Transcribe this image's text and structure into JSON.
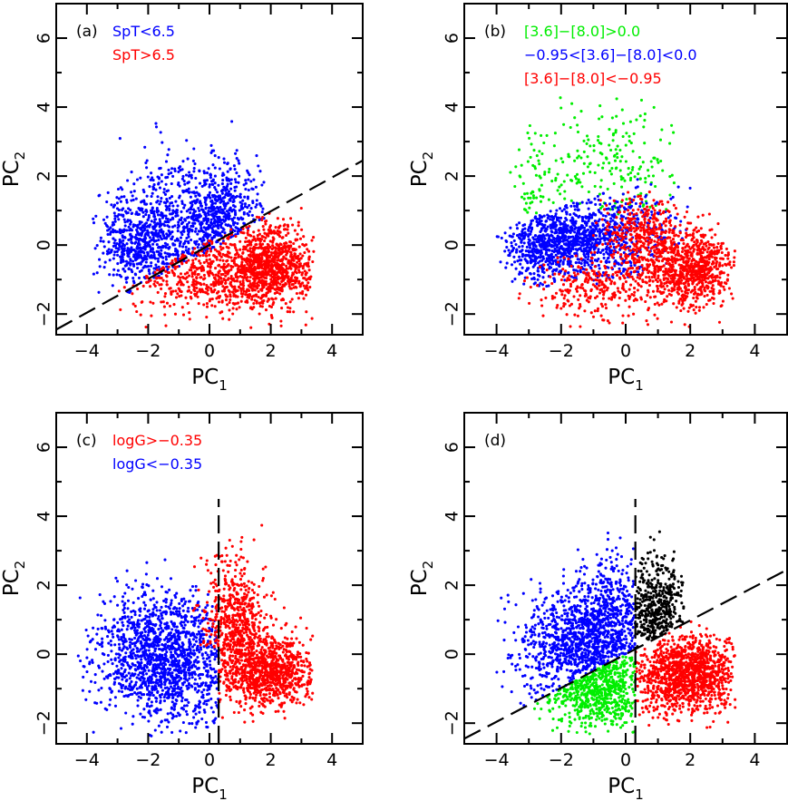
{
  "chart_data": [
    {
      "type": "scatter",
      "panel": "(a)",
      "xlabel": "PC",
      "xlabel_sub": "1",
      "ylabel": "PC",
      "ylabel_sub": "2",
      "xlim": [
        -5,
        5
      ],
      "ylim": [
        -2.6,
        7
      ],
      "xticks": [
        -4,
        -2,
        0,
        2,
        4
      ],
      "xtick_labels": [
        "−4",
        "−2",
        "0",
        "2",
        "4"
      ],
      "yticks": [
        -2,
        0,
        2,
        4,
        6
      ],
      "ytick_labels": [
        "−2",
        "0",
        "2",
        "4",
        "6"
      ],
      "legend": [
        {
          "label": "SpT<6.5",
          "color": "#0000ff"
        },
        {
          "label": "SpT>6.5",
          "color": "#ff0000"
        }
      ],
      "lines": [
        {
          "x": [
            -5,
            5
          ],
          "y": [
            -2.45,
            2.45
          ]
        }
      ],
      "series": [
        {
          "name": "SpT<6.5",
          "color": "#0000ff",
          "n": 1400,
          "seed": 11,
          "clusters": [
            {
              "w": 0.5,
              "cx": -0.6,
              "cy": 0.6,
              "sx": 1.25,
              "sy": 1.0
            },
            {
              "w": 0.3,
              "cx": -2.3,
              "cy": 0.0,
              "sx": 0.7,
              "sy": 0.6
            },
            {
              "w": 0.2,
              "cx": 0.5,
              "cy": 1.0,
              "sx": 0.7,
              "sy": 0.7
            }
          ],
          "rule": "above_line",
          "bounds": [
            -3.8,
            1.8,
            -1.5,
            4.7
          ]
        },
        {
          "name": "SpT>6.5",
          "color": "#ff0000",
          "n": 1450,
          "seed": 23,
          "clusters": [
            {
              "w": 0.55,
              "cx": 2.0,
              "cy": -0.6,
              "sx": 0.75,
              "sy": 0.55
            },
            {
              "w": 0.45,
              "cx": 0.0,
              "cy": -0.9,
              "sx": 1.4,
              "sy": 0.6
            }
          ],
          "rule": "below_line",
          "bounds": [
            -3.2,
            3.4,
            -2.4,
            1.3
          ]
        }
      ]
    },
    {
      "type": "scatter",
      "panel": "(b)",
      "xlabel": "PC",
      "xlabel_sub": "1",
      "ylabel": "PC",
      "ylabel_sub": "2",
      "xlim": [
        -5,
        5
      ],
      "ylim": [
        -2.6,
        7
      ],
      "xticks": [
        -4,
        -2,
        0,
        2,
        4
      ],
      "xtick_labels": [
        "−4",
        "−2",
        "0",
        "2",
        "4"
      ],
      "yticks": [
        -2,
        0,
        2,
        4,
        6
      ],
      "ytick_labels": [
        "−2",
        "0",
        "2",
        "4",
        "6"
      ],
      "legend": [
        {
          "label": "[3.6]−[8.0]>0.0",
          "color": "#00ee00"
        },
        {
          "label": "−0.95<[3.6]−[8.0]<0.0",
          "color": "#0000ff"
        },
        {
          "label": "[3.6]−[8.0]<−0.95",
          "color": "#ff0000"
        }
      ],
      "lines": [],
      "series": [
        {
          "name": "[3.6]−[8.0]>0.0",
          "color": "#00ee00",
          "n": 260,
          "seed": 31,
          "clusters": [
            {
              "w": 0.7,
              "cx": -0.2,
              "cy": 2.3,
              "sx": 1.2,
              "sy": 0.9
            },
            {
              "w": 0.3,
              "cx": -2.8,
              "cy": 1.5,
              "sx": 0.5,
              "sy": 0.8
            }
          ],
          "rule": "y_above",
          "y0": 0.9,
          "bounds": [
            -3.6,
            1.5,
            0.9,
            4.4
          ]
        },
        {
          "name": "−0.95<[3.6]−[8.0]<0.0",
          "color": "#0000ff",
          "n": 1300,
          "seed": 37,
          "clusters": [
            {
              "w": 0.6,
              "cx": -1.0,
              "cy": 0.3,
              "sx": 1.2,
              "sy": 0.6
            },
            {
              "w": 0.4,
              "cx": -2.3,
              "cy": -0.1,
              "sx": 0.7,
              "sy": 0.5
            }
          ],
          "rule": "band",
          "bounds": [
            -4.0,
            2.0,
            -1.2,
            2.1
          ]
        },
        {
          "name": "[3.6]−[8.0]<−0.95",
          "color": "#ff0000",
          "n": 1500,
          "seed": 41,
          "clusters": [
            {
              "w": 0.55,
              "cx": 2.0,
              "cy": -0.7,
              "sx": 0.7,
              "sy": 0.55
            },
            {
              "w": 0.25,
              "cx": 0.5,
              "cy": 0.3,
              "sx": 0.6,
              "sy": 0.6
            },
            {
              "w": 0.2,
              "cx": -1.0,
              "cy": -1.2,
              "sx": 1.1,
              "sy": 0.5
            }
          ],
          "rule": "none",
          "bounds": [
            -3.5,
            3.4,
            -2.4,
            1.6
          ]
        }
      ]
    },
    {
      "type": "scatter",
      "panel": "(c)",
      "xlabel": "PC",
      "xlabel_sub": "1",
      "ylabel": "PC",
      "ylabel_sub": "2",
      "xlim": [
        -5,
        5
      ],
      "ylim": [
        -2.6,
        7
      ],
      "xticks": [
        -4,
        -2,
        0,
        2,
        4
      ],
      "xtick_labels": [
        "−4",
        "−2",
        "0",
        "2",
        "4"
      ],
      "yticks": [
        -2,
        0,
        2,
        4,
        6
      ],
      "ytick_labels": [
        "−2",
        "0",
        "2",
        "4",
        "6"
      ],
      "legend": [
        {
          "label": "logG>−0.35",
          "color": "#ff0000"
        },
        {
          "label": "logG<−0.35",
          "color": "#0000ff"
        }
      ],
      "lines": [
        {
          "x": [
            0.3,
            0.3
          ],
          "y": [
            -2.6,
            4.5
          ]
        }
      ],
      "series": [
        {
          "name": "logG<−0.35",
          "color": "#0000ff",
          "n": 1500,
          "seed": 53,
          "clusters": [
            {
              "w": 0.6,
              "cx": -1.9,
              "cy": 0.0,
              "sx": 1.0,
              "sy": 0.9
            },
            {
              "w": 0.4,
              "cx": -0.7,
              "cy": -0.3,
              "sx": 0.9,
              "sy": 1.0
            }
          ],
          "rule": "x_below",
          "x0": 0.3,
          "bounds": [
            -4.3,
            0.3,
            -2.4,
            3.6
          ]
        },
        {
          "name": "logG>−0.35",
          "color": "#ff0000",
          "n": 1500,
          "seed": 59,
          "clusters": [
            {
              "w": 0.55,
              "cx": 2.0,
              "cy": -0.5,
              "sx": 0.7,
              "sy": 0.55
            },
            {
              "w": 0.45,
              "cx": 0.8,
              "cy": 0.8,
              "sx": 0.5,
              "sy": 1.0
            }
          ],
          "rule": "x_above",
          "x0": -0.8,
          "bounds": [
            -0.8,
            3.4,
            -2.3,
            4.7
          ]
        }
      ]
    },
    {
      "type": "scatter",
      "panel": "(d)",
      "xlabel": "PC",
      "xlabel_sub": "1",
      "ylabel": "PC",
      "ylabel_sub": "2",
      "xlim": [
        -5,
        5
      ],
      "ylim": [
        -2.6,
        7
      ],
      "xticks": [
        -4,
        -2,
        0,
        2,
        4
      ],
      "xtick_labels": [
        "−4",
        "−2",
        "0",
        "2",
        "4"
      ],
      "yticks": [
        -2,
        0,
        2,
        4,
        6
      ],
      "ytick_labels": [
        "−2",
        "0",
        "2",
        "4",
        "6"
      ],
      "legend": [],
      "lines": [
        {
          "x": [
            -5,
            5
          ],
          "y": [
            -2.45,
            2.45
          ]
        },
        {
          "x": [
            0.3,
            0.3
          ],
          "y": [
            -2.6,
            4.5
          ]
        }
      ],
      "series": [
        {
          "name": "blue region",
          "color": "#0000ff",
          "n": 1300,
          "seed": 67,
          "clusters": [
            {
              "w": 0.6,
              "cx": -1.6,
              "cy": 0.3,
              "sx": 1.0,
              "sy": 0.8
            },
            {
              "w": 0.4,
              "cx": -0.5,
              "cy": 1.0,
              "sx": 0.6,
              "sy": 0.9
            }
          ],
          "rule": "left_above",
          "bounds": [
            -4.0,
            0.3,
            -1.8,
            4.7
          ]
        },
        {
          "name": "green region",
          "color": "#00ee00",
          "n": 650,
          "seed": 71,
          "clusters": [
            {
              "w": 1.0,
              "cx": -0.9,
              "cy": -1.0,
              "sx": 0.9,
              "sy": 0.6
            }
          ],
          "rule": "left_below",
          "bounds": [
            -3.2,
            0.3,
            -2.4,
            0.15
          ]
        },
        {
          "name": "black region",
          "color": "#000000",
          "n": 430,
          "seed": 79,
          "clusters": [
            {
              "w": 1.0,
              "cx": 0.9,
              "cy": 1.3,
              "sx": 0.45,
              "sy": 0.7
            }
          ],
          "rule": "right_above",
          "bounds": [
            0.3,
            1.8,
            0.1,
            4.3
          ]
        },
        {
          "name": "red region",
          "color": "#ff0000",
          "n": 1250,
          "seed": 83,
          "clusters": [
            {
              "w": 1.0,
              "cx": 1.9,
              "cy": -0.6,
              "sx": 0.75,
              "sy": 0.55
            }
          ],
          "rule": "right_below",
          "bounds": [
            0.3,
            3.4,
            -2.2,
            1.3
          ]
        }
      ]
    }
  ]
}
